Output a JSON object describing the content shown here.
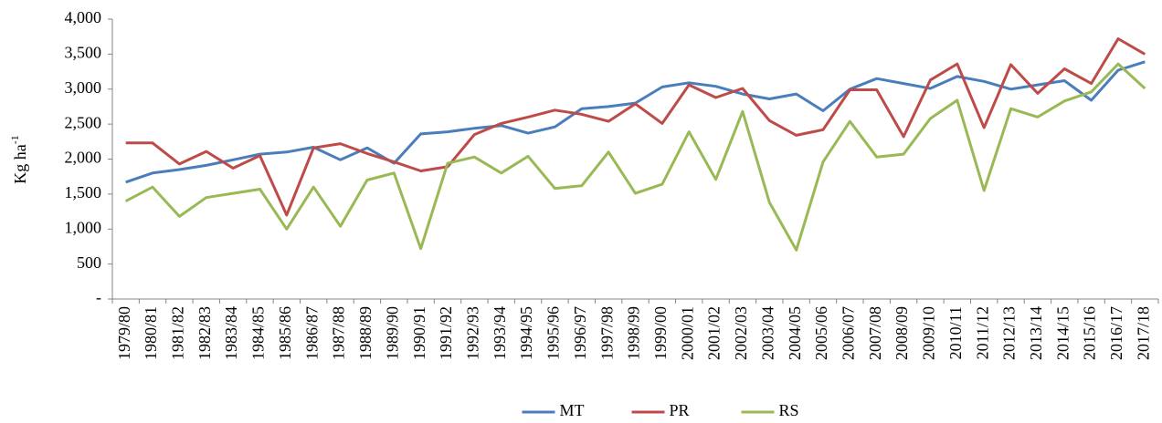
{
  "chart_data": {
    "type": "line",
    "y_label": {
      "text": "Kg ha",
      "superscript": "-1"
    },
    "categories": [
      "1979/80",
      "1980/81",
      "1981/82",
      "1982/83",
      "1983/84",
      "1984/85",
      "1985/86",
      "1986/87",
      "1987/88",
      "1988/89",
      "1989/90",
      "1990/91",
      "1991/92",
      "1992/93",
      "1993/94",
      "1994/95",
      "1995/96",
      "1996/97",
      "1997/98",
      "1998/99",
      "1999/00",
      "2000/01",
      "2001/02",
      "2002/03",
      "2003/04",
      "2004/05",
      "2005/06",
      "2006/07",
      "2007/08",
      "2008/09",
      "2009/10",
      "2010/11",
      "2011/12",
      "2012/13",
      "2013/14",
      "2014/15",
      "2015/16",
      "2016/17",
      "2017/18"
    ],
    "series": [
      {
        "name": "MT",
        "color": "#4a7ebb",
        "values": [
          1670,
          1800,
          1850,
          1910,
          1990,
          2070,
          2100,
          2170,
          1990,
          2160,
          1940,
          2360,
          2390,
          2440,
          2480,
          2370,
          2460,
          2720,
          2750,
          2800,
          3030,
          3090,
          3040,
          2930,
          2860,
          2930,
          2690,
          3000,
          3150,
          3080,
          3010,
          3180,
          3110,
          3000,
          3060,
          3120,
          2840,
          3270,
          3390
        ]
      },
      {
        "name": "PR",
        "color": "#be4b48",
        "values": [
          2230,
          2230,
          1930,
          2110,
          1870,
          2050,
          1200,
          2160,
          2220,
          2080,
          1960,
          1830,
          1890,
          2350,
          2510,
          2600,
          2700,
          2640,
          2540,
          2790,
          2510,
          3060,
          2880,
          3010,
          2550,
          2340,
          2420,
          2990,
          2990,
          2320,
          3130,
          3360,
          2450,
          3350,
          2940,
          3290,
          3080,
          3720,
          3500
        ]
      },
      {
        "name": "RS",
        "color": "#98b954",
        "values": [
          1400,
          1600,
          1180,
          1450,
          1510,
          1570,
          1000,
          1600,
          1040,
          1700,
          1800,
          720,
          1940,
          2030,
          1800,
          2040,
          1580,
          1620,
          2100,
          1510,
          1640,
          2390,
          1710,
          2680,
          1380,
          700,
          1960,
          2540,
          2030,
          2070,
          2580,
          2840,
          1550,
          2720,
          2600,
          2830,
          2960,
          3360,
          3010
        ]
      }
    ],
    "ylim": [
      0,
      4000
    ],
    "yticks": [
      {
        "value": 0,
        "label": "-"
      },
      500,
      {
        "value": 1000,
        "label": "1,000"
      },
      {
        "value": 1500,
        "label": "1,500"
      },
      {
        "value": 2000,
        "label": "2,000"
      },
      {
        "value": 2500,
        "label": "2,500"
      },
      {
        "value": 3000,
        "label": "3,000"
      },
      {
        "value": 3500,
        "label": "3,500"
      },
      {
        "value": 4000,
        "label": "4,000"
      }
    ],
    "grid": false,
    "legend": "bottom"
  }
}
